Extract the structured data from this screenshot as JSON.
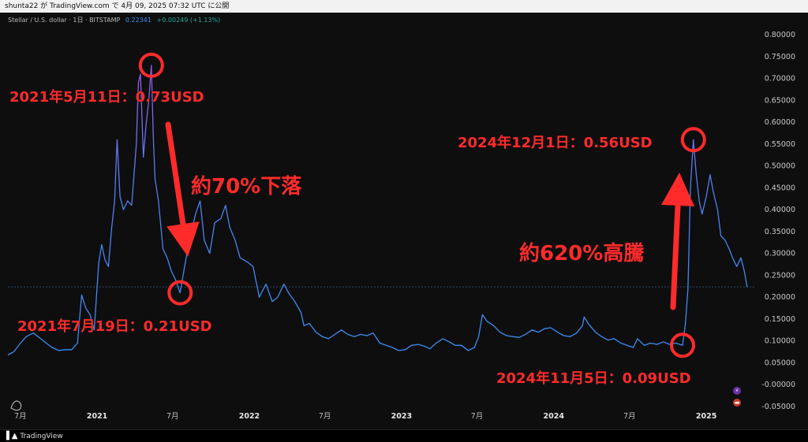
{
  "header": {
    "publish_line": "shunta22 が TradingView.com で 4月 09, 2025 07:32 UTC に公開"
  },
  "symbol": {
    "name": "Stellar / U.S. dollar · 1日 · BITSTAMP",
    "last_price": "0.22341",
    "change": "+0.00249 (+1.13%)"
  },
  "footer": {
    "brand": "TradingView"
  },
  "colors": {
    "line_low": "#3b8df0",
    "line_high": "#9b59e8",
    "annotation": "#ff2b2b",
    "background": "#0e0e0f"
  },
  "chart_data": {
    "type": "line",
    "title": "",
    "ylim": [
      -0.05,
      0.8
    ],
    "yticks": [
      "0.80000",
      "0.75000",
      "0.70000",
      "0.65000",
      "0.60000",
      "0.55000",
      "0.50000",
      "0.45000",
      "0.40000",
      "0.35000",
      "0.30000",
      "0.25000",
      "0.20000",
      "0.15000",
      "0.10000",
      "0.05000",
      "-0.00000",
      "-0.05000"
    ],
    "ytick_values": [
      0.8,
      0.75,
      0.7,
      0.65,
      0.6,
      0.55,
      0.5,
      0.45,
      0.4,
      0.35,
      0.3,
      0.25,
      0.2,
      0.15,
      0.1,
      0.05,
      0.0,
      -0.05
    ],
    "xlim": [
      "2020-06-01",
      "2025-04-30"
    ],
    "xticks": [
      {
        "date": "2020-07-01",
        "label": "7月"
      },
      {
        "date": "2021-01-01",
        "label": "2021"
      },
      {
        "date": "2021-07-01",
        "label": "7月"
      },
      {
        "date": "2022-01-01",
        "label": "2022"
      },
      {
        "date": "2022-07-01",
        "label": "7月"
      },
      {
        "date": "2023-01-01",
        "label": "2023"
      },
      {
        "date": "2023-07-01",
        "label": "7月"
      },
      {
        "date": "2024-01-01",
        "label": "2024"
      },
      {
        "date": "2024-07-01",
        "label": "7月"
      },
      {
        "date": "2025-01-01",
        "label": "2025"
      }
    ],
    "last_price_level": 0.22341,
    "series": [
      {
        "values": [
          [
            "2020-06-01",
            0.068
          ],
          [
            "2020-06-15",
            0.075
          ],
          [
            "2020-07-01",
            0.095
          ],
          [
            "2020-07-15",
            0.11
          ],
          [
            "2020-08-01",
            0.118
          ],
          [
            "2020-08-15",
            0.108
          ],
          [
            "2020-09-01",
            0.095
          ],
          [
            "2020-09-15",
            0.085
          ],
          [
            "2020-10-01",
            0.078
          ],
          [
            "2020-10-15",
            0.08
          ],
          [
            "2020-11-01",
            0.08
          ],
          [
            "2020-11-15",
            0.095
          ],
          [
            "2020-11-25",
            0.205
          ],
          [
            "2020-12-05",
            0.175
          ],
          [
            "2020-12-15",
            0.16
          ],
          [
            "2020-12-25",
            0.125
          ],
          [
            "2021-01-05",
            0.28
          ],
          [
            "2021-01-12",
            0.32
          ],
          [
            "2021-01-20",
            0.285
          ],
          [
            "2021-01-28",
            0.27
          ],
          [
            "2021-02-05",
            0.36
          ],
          [
            "2021-02-12",
            0.42
          ],
          [
            "2021-02-18",
            0.56
          ],
          [
            "2021-02-25",
            0.43
          ],
          [
            "2021-03-05",
            0.4
          ],
          [
            "2021-03-15",
            0.42
          ],
          [
            "2021-03-25",
            0.41
          ],
          [
            "2021-04-05",
            0.55
          ],
          [
            "2021-04-10",
            0.69
          ],
          [
            "2021-04-15",
            0.71
          ],
          [
            "2021-04-22",
            0.52
          ],
          [
            "2021-04-28",
            0.59
          ],
          [
            "2021-05-05",
            0.65
          ],
          [
            "2021-05-11",
            0.73
          ],
          [
            "2021-05-16",
            0.56
          ],
          [
            "2021-05-20",
            0.47
          ],
          [
            "2021-05-28",
            0.42
          ],
          [
            "2021-06-08",
            0.31
          ],
          [
            "2021-06-18",
            0.29
          ],
          [
            "2021-06-28",
            0.26
          ],
          [
            "2021-07-08",
            0.24
          ],
          [
            "2021-07-19",
            0.21
          ],
          [
            "2021-07-28",
            0.26
          ],
          [
            "2021-08-10",
            0.33
          ],
          [
            "2021-08-25",
            0.39
          ],
          [
            "2021-09-05",
            0.42
          ],
          [
            "2021-09-15",
            0.33
          ],
          [
            "2021-09-28",
            0.3
          ],
          [
            "2021-10-10",
            0.37
          ],
          [
            "2021-10-25",
            0.38
          ],
          [
            "2021-11-05",
            0.41
          ],
          [
            "2021-11-15",
            0.36
          ],
          [
            "2021-11-28",
            0.33
          ],
          [
            "2021-12-10",
            0.29
          ],
          [
            "2021-12-28",
            0.28
          ],
          [
            "2022-01-10",
            0.27
          ],
          [
            "2022-01-25",
            0.2
          ],
          [
            "2022-02-10",
            0.23
          ],
          [
            "2022-02-25",
            0.19
          ],
          [
            "2022-03-10",
            0.2
          ],
          [
            "2022-03-25",
            0.23
          ],
          [
            "2022-04-05",
            0.21
          ],
          [
            "2022-04-20",
            0.19
          ],
          [
            "2022-05-05",
            0.165
          ],
          [
            "2022-05-12",
            0.135
          ],
          [
            "2022-05-25",
            0.14
          ],
          [
            "2022-06-10",
            0.12
          ],
          [
            "2022-06-25",
            0.11
          ],
          [
            "2022-07-10",
            0.105
          ],
          [
            "2022-07-25",
            0.115
          ],
          [
            "2022-08-10",
            0.125
          ],
          [
            "2022-08-25",
            0.115
          ],
          [
            "2022-09-10",
            0.11
          ],
          [
            "2022-09-25",
            0.115
          ],
          [
            "2022-10-10",
            0.112
          ],
          [
            "2022-10-25",
            0.118
          ],
          [
            "2022-11-10",
            0.095
          ],
          [
            "2022-11-25",
            0.09
          ],
          [
            "2022-12-10",
            0.085
          ],
          [
            "2022-12-25",
            0.078
          ],
          [
            "2023-01-10",
            0.08
          ],
          [
            "2023-01-25",
            0.09
          ],
          [
            "2023-02-10",
            0.092
          ],
          [
            "2023-02-25",
            0.088
          ],
          [
            "2023-03-10",
            0.082
          ],
          [
            "2023-03-25",
            0.095
          ],
          [
            "2023-04-10",
            0.105
          ],
          [
            "2023-04-25",
            0.098
          ],
          [
            "2023-05-10",
            0.09
          ],
          [
            "2023-05-25",
            0.09
          ],
          [
            "2023-06-10",
            0.078
          ],
          [
            "2023-06-25",
            0.085
          ],
          [
            "2023-07-05",
            0.11
          ],
          [
            "2023-07-14",
            0.16
          ],
          [
            "2023-07-25",
            0.145
          ],
          [
            "2023-08-10",
            0.135
          ],
          [
            "2023-08-25",
            0.12
          ],
          [
            "2023-09-10",
            0.112
          ],
          [
            "2023-09-25",
            0.11
          ],
          [
            "2023-10-10",
            0.108
          ],
          [
            "2023-10-25",
            0.115
          ],
          [
            "2023-11-10",
            0.125
          ],
          [
            "2023-11-25",
            0.12
          ],
          [
            "2023-12-10",
            0.128
          ],
          [
            "2023-12-25",
            0.13
          ],
          [
            "2024-01-10",
            0.12
          ],
          [
            "2024-01-25",
            0.112
          ],
          [
            "2024-02-10",
            0.11
          ],
          [
            "2024-02-25",
            0.118
          ],
          [
            "2024-03-10",
            0.135
          ],
          [
            "2024-03-14",
            0.155
          ],
          [
            "2024-03-25",
            0.138
          ],
          [
            "2024-04-10",
            0.12
          ],
          [
            "2024-04-25",
            0.11
          ],
          [
            "2024-05-10",
            0.102
          ],
          [
            "2024-05-25",
            0.105
          ],
          [
            "2024-06-10",
            0.095
          ],
          [
            "2024-06-25",
            0.09
          ],
          [
            "2024-07-10",
            0.085
          ],
          [
            "2024-07-20",
            0.105
          ],
          [
            "2024-08-05",
            0.09
          ],
          [
            "2024-08-20",
            0.095
          ],
          [
            "2024-09-05",
            0.092
          ],
          [
            "2024-09-20",
            0.098
          ],
          [
            "2024-10-05",
            0.092
          ],
          [
            "2024-10-20",
            0.095
          ],
          [
            "2024-11-05",
            0.09
          ],
          [
            "2024-11-12",
            0.14
          ],
          [
            "2024-11-18",
            0.22
          ],
          [
            "2024-11-24",
            0.45
          ],
          [
            "2024-12-01",
            0.56
          ],
          [
            "2024-12-08",
            0.48
          ],
          [
            "2024-12-15",
            0.42
          ],
          [
            "2024-12-22",
            0.39
          ],
          [
            "2025-01-01",
            0.43
          ],
          [
            "2025-01-10",
            0.48
          ],
          [
            "2025-01-18",
            0.44
          ],
          [
            "2025-01-28",
            0.4
          ],
          [
            "2025-02-05",
            0.34
          ],
          [
            "2025-02-15",
            0.33
          ],
          [
            "2025-02-25",
            0.31
          ],
          [
            "2025-03-05",
            0.29
          ],
          [
            "2025-03-15",
            0.27
          ],
          [
            "2025-03-25",
            0.29
          ],
          [
            "2025-04-02",
            0.26
          ],
          [
            "2025-04-09",
            0.223
          ]
        ]
      }
    ],
    "annotations": {
      "peak_2021": {
        "date": "2021-05-11",
        "value": 0.73,
        "label": "2021年5月11日：0.73USD"
      },
      "bottom_2021": {
        "date": "2021-07-19",
        "value": 0.21,
        "label": "2021年7月19日：0.21USD"
      },
      "bottom_2024": {
        "date": "2024-11-05",
        "value": 0.09,
        "label": "2024年11月5日：0.09USD"
      },
      "peak_2024": {
        "date": "2024-12-01",
        "value": 0.56,
        "label": "2024年12月1日：0.56USD"
      },
      "drop_label": "約70%下落",
      "rise_label": "約620%高騰"
    }
  }
}
